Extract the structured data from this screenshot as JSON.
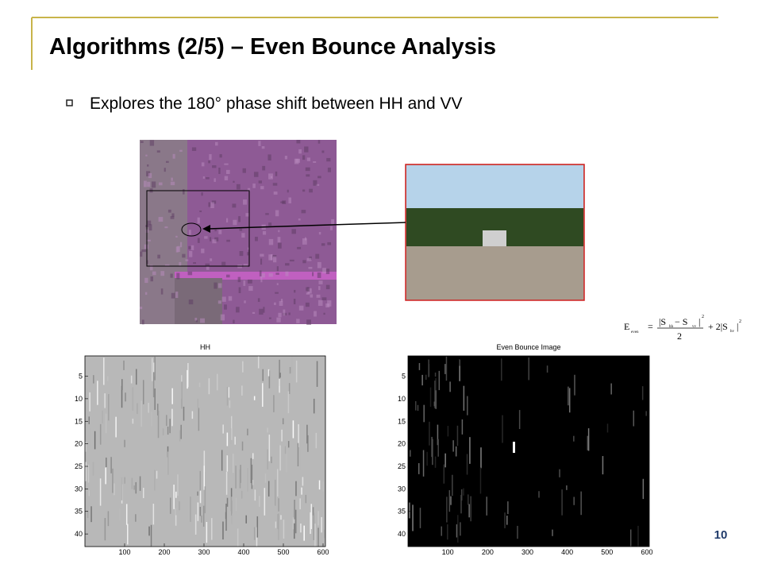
{
  "slide": {
    "title": "Algorithms (2/5) – Even Bounce Analysis",
    "bullet": "Explores the 180° phase shift between HH and VV",
    "page_number": "10",
    "formula": {
      "lhs": "E",
      "lhs_sub": "even",
      "eq": "=",
      "num": "|S",
      "num_sub1": "hh",
      "minus": " − S",
      "num_sub2": "vv",
      "num_close": "|",
      "sq": "2",
      "den": "2",
      "plus": "+ 2|S",
      "sub3": "hv",
      "close": "|"
    }
  },
  "plots": [
    {
      "title": "HH",
      "xlim": [
        0,
        606
      ],
      "ylim": [
        0.5,
        42.8
      ],
      "xticks": [
        100,
        200,
        300,
        400,
        500,
        600
      ],
      "yticks": [
        5,
        10,
        15,
        20,
        25,
        30,
        35,
        40
      ],
      "style": "gray"
    },
    {
      "title": "Even Bounce Image",
      "xlim": [
        0,
        606
      ],
      "ylim": [
        0.5,
        42.8
      ],
      "xticks": [
        100,
        200,
        300,
        400,
        500,
        600
      ],
      "yticks": [
        5,
        10,
        15,
        20,
        25,
        30,
        35,
        40
      ],
      "style": "dark"
    }
  ]
}
